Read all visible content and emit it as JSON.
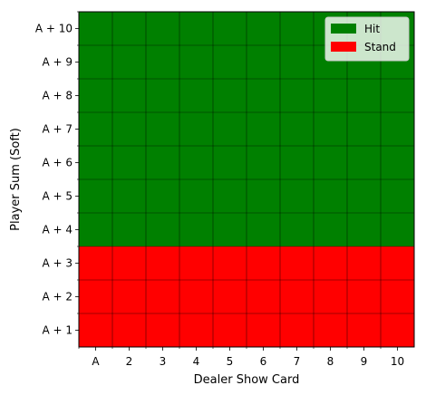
{
  "chart_data": {
    "type": "heatmap",
    "title": "",
    "xlabel": "Dealer Show Card",
    "ylabel": "Player Sum (Soft)",
    "x_categories": [
      "A",
      "2",
      "3",
      "4",
      "5",
      "6",
      "7",
      "8",
      "9",
      "10"
    ],
    "y_categories": [
      "A + 10",
      "A + 9",
      "A + 8",
      "A + 7",
      "A + 6",
      "A + 5",
      "A + 4",
      "A + 3",
      "A + 2",
      "A + 1"
    ],
    "values": [
      [
        "Hit",
        "Hit",
        "Hit",
        "Hit",
        "Hit",
        "Hit",
        "Hit",
        "Hit",
        "Hit",
        "Hit"
      ],
      [
        "Hit",
        "Hit",
        "Hit",
        "Hit",
        "Hit",
        "Hit",
        "Hit",
        "Hit",
        "Hit",
        "Hit"
      ],
      [
        "Hit",
        "Hit",
        "Hit",
        "Hit",
        "Hit",
        "Hit",
        "Hit",
        "Hit",
        "Hit",
        "Hit"
      ],
      [
        "Hit",
        "Hit",
        "Hit",
        "Hit",
        "Hit",
        "Hit",
        "Hit",
        "Hit",
        "Hit",
        "Hit"
      ],
      [
        "Hit",
        "Hit",
        "Hit",
        "Hit",
        "Hit",
        "Hit",
        "Hit",
        "Hit",
        "Hit",
        "Hit"
      ],
      [
        "Hit",
        "Hit",
        "Hit",
        "Hit",
        "Hit",
        "Hit",
        "Hit",
        "Hit",
        "Hit",
        "Hit"
      ],
      [
        "Hit",
        "Hit",
        "Hit",
        "Hit",
        "Hit",
        "Hit",
        "Hit",
        "Hit",
        "Hit",
        "Hit"
      ],
      [
        "Stand",
        "Stand",
        "Stand",
        "Stand",
        "Stand",
        "Stand",
        "Stand",
        "Stand",
        "Stand",
        "Stand"
      ],
      [
        "Stand",
        "Stand",
        "Stand",
        "Stand",
        "Stand",
        "Stand",
        "Stand",
        "Stand",
        "Stand",
        "Stand"
      ],
      [
        "Stand",
        "Stand",
        "Stand",
        "Stand",
        "Stand",
        "Stand",
        "Stand",
        "Stand",
        "Stand",
        "Stand"
      ]
    ],
    "legend": {
      "placement": "top-right",
      "entries": [
        {
          "label": "Hit",
          "color": "#008000"
        },
        {
          "label": "Stand",
          "color": "#ff0000"
        }
      ]
    },
    "grid": true
  }
}
